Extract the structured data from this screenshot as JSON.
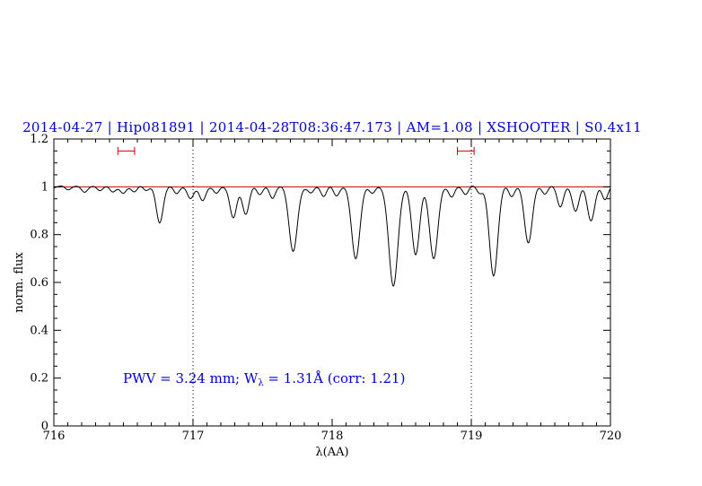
{
  "title": "2014-04-27 | Hip081891 | 2014-04-28T08:36:47.173 | AM=1.08 | XSHOOTER | S0.4x11",
  "annotation": {
    "pre": "PWV = 3.24 mm; W",
    "sub": "λ",
    "post": " = 1.31Å (corr: 1.21)"
  },
  "colors": {
    "title_blue": "#0000cd",
    "annotation_blue": "#0000cd",
    "continuum_red": "#cc0000",
    "marker_red": "#cc0000",
    "spectrum_black": "#000000",
    "axis_black": "#000000"
  },
  "chart_data": {
    "type": "line",
    "title": "2014-04-27 | Hip081891 | 2014-04-28T08:36:47.173 | AM=1.08 | XSHOOTER | S0.4x11",
    "xlabel": "λ(AA)",
    "ylabel": "norm. flux",
    "xlim": [
      716,
      720
    ],
    "ylim": [
      0,
      1.2
    ],
    "x_ticks": [
      716,
      717,
      718,
      719,
      720
    ],
    "x_tick_labels": [
      "716",
      "717",
      "718",
      "719",
      "720"
    ],
    "y_ticks": [
      0,
      0.2,
      0.4,
      0.6,
      0.8,
      1,
      1.2
    ],
    "y_tick_labels": [
      "0",
      "0.2",
      "0.4",
      "0.6",
      "0.8",
      "1",
      "1.2"
    ],
    "x_minor_step": 0.1,
    "y_minor_step": 0.05,
    "grid": false,
    "legend": "none",
    "continuum_level": 1.0,
    "dotted_vlines": [
      717,
      719
    ],
    "range_markers": [
      {
        "x1": 716.46,
        "x2": 716.58,
        "y": 1.15
      },
      {
        "x1": 718.9,
        "x2": 719.02,
        "y": 1.15
      }
    ],
    "pwv_mm": 3.24,
    "w_lambda_A": 1.31,
    "corr": 1.21,
    "sampling_step": 0.005,
    "noise": [
      [
        0.003,
        55.3,
        0.4
      ],
      [
        0.002,
        23.7,
        1.1
      ]
    ],
    "absorption_lines": [
      [
        716.1,
        0.012,
        0.02
      ],
      [
        716.22,
        0.018,
        0.02
      ],
      [
        716.33,
        0.015,
        0.02
      ],
      [
        716.42,
        0.022,
        0.02
      ],
      [
        716.5,
        0.028,
        0.02
      ],
      [
        716.58,
        0.02,
        0.02
      ],
      [
        716.66,
        0.015,
        0.018
      ],
      [
        716.76,
        0.15,
        0.024
      ],
      [
        716.88,
        0.03,
        0.02
      ],
      [
        716.98,
        0.05,
        0.022
      ],
      [
        717.07,
        0.06,
        0.022
      ],
      [
        717.17,
        0.03,
        0.02
      ],
      [
        717.29,
        0.13,
        0.024
      ],
      [
        717.38,
        0.115,
        0.024
      ],
      [
        717.48,
        0.03,
        0.02
      ],
      [
        717.57,
        0.045,
        0.02
      ],
      [
        717.72,
        0.27,
        0.03
      ],
      [
        717.85,
        0.025,
        0.02
      ],
      [
        717.94,
        0.04,
        0.02
      ],
      [
        718.03,
        0.035,
        0.02
      ],
      [
        718.17,
        0.3,
        0.03
      ],
      [
        718.29,
        0.025,
        0.02
      ],
      [
        718.44,
        0.42,
        0.032
      ],
      [
        718.6,
        0.28,
        0.028
      ],
      [
        718.73,
        0.3,
        0.03
      ],
      [
        718.86,
        0.04,
        0.02
      ],
      [
        718.96,
        0.03,
        0.02
      ],
      [
        719.06,
        0.025,
        0.02
      ],
      [
        719.16,
        0.37,
        0.03
      ],
      [
        719.29,
        0.04,
        0.02
      ],
      [
        719.41,
        0.23,
        0.028
      ],
      [
        719.53,
        0.03,
        0.02
      ],
      [
        719.64,
        0.08,
        0.022
      ],
      [
        719.75,
        0.1,
        0.024
      ],
      [
        719.86,
        0.14,
        0.026
      ],
      [
        719.96,
        0.05,
        0.02
      ]
    ]
  }
}
